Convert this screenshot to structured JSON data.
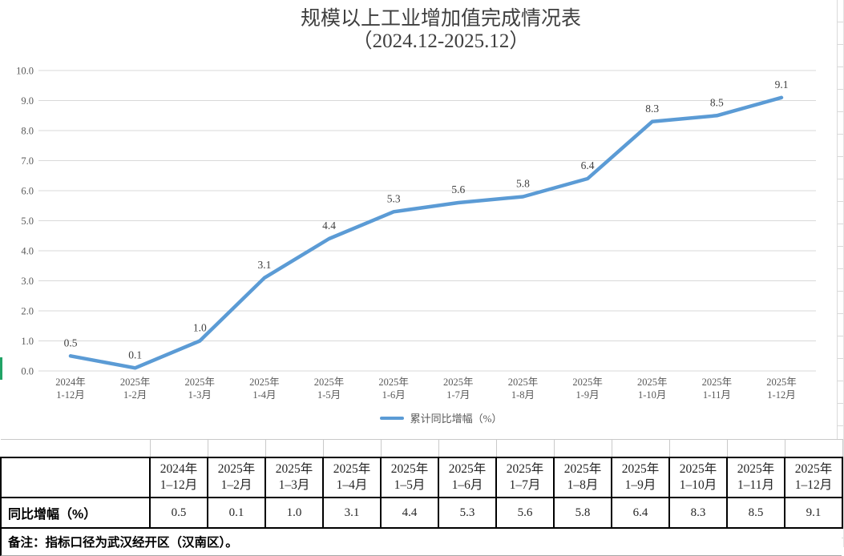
{
  "chart_data": {
    "type": "line",
    "title": "规模以上工业增加值完成情况表",
    "subtitle": "（2024.12-2025.12）",
    "categories": [
      {
        "line1": "2024年",
        "line2": "1-12月"
      },
      {
        "line1": "2025年",
        "line2": "1-2月"
      },
      {
        "line1": "2025年",
        "line2": "1-3月"
      },
      {
        "line1": "2025年",
        "line2": "1-4月"
      },
      {
        "line1": "2025年",
        "line2": "1-5月"
      },
      {
        "line1": "2025年",
        "line2": "1-6月"
      },
      {
        "line1": "2025年",
        "line2": "1-7月"
      },
      {
        "line1": "2025年",
        "line2": "1-8月"
      },
      {
        "line1": "2025年",
        "line2": "1-9月"
      },
      {
        "line1": "2025年",
        "line2": "1-10月"
      },
      {
        "line1": "2025年",
        "line2": "1-11月"
      },
      {
        "line1": "2025年",
        "line2": "1-12月"
      }
    ],
    "series": [
      {
        "name": "累计同比增幅（%）",
        "values": [
          0.5,
          0.1,
          1.0,
          3.1,
          4.4,
          5.3,
          5.6,
          5.8,
          6.4,
          8.3,
          8.5,
          9.1
        ]
      }
    ],
    "data_labels": [
      "0.5",
      "0.1",
      "1.0",
      "3.1",
      "4.4",
      "5.3",
      "5.6",
      "5.8",
      "6.4",
      "8.3",
      "8.5",
      "9.1"
    ],
    "ylim": [
      0,
      10
    ],
    "ytick_step": 1,
    "ytick_decimals": 1,
    "grid": "horizontal",
    "legend": "累计同比增幅（%）",
    "legend_position": "bottom"
  },
  "table": {
    "row_label": "同比增幅（%）",
    "columns": [
      {
        "line1": "2024年",
        "line2": "1–12月"
      },
      {
        "line1": "2025年",
        "line2": "1–2月"
      },
      {
        "line1": "2025年",
        "line2": "1–3月"
      },
      {
        "line1": "2025年",
        "line2": "1–4月"
      },
      {
        "line1": "2025年",
        "line2": "1–5月"
      },
      {
        "line1": "2025年",
        "line2": "1–6月"
      },
      {
        "line1": "2025年",
        "line2": "1–7月"
      },
      {
        "line1": "2025年",
        "line2": "1–8月"
      },
      {
        "line1": "2025年",
        "line2": "1–9月"
      },
      {
        "line1": "2025年",
        "line2": "1–10月"
      },
      {
        "line1": "2025年",
        "line2": "1–11月"
      },
      {
        "line1": "2025年",
        "line2": "1–12月"
      }
    ],
    "values": [
      "0.5",
      "0.1",
      "1.0",
      "3.1",
      "4.4",
      "5.3",
      "5.6",
      "5.8",
      "6.4",
      "8.3",
      "8.5",
      "9.1"
    ]
  },
  "footnote": "备注：指标口径为武汉经开区（汉南区）。",
  "colors": {
    "line": "#5B9BD5",
    "grid": "#D9D9D9",
    "axis_text": "#595959",
    "data_label": "#404040",
    "title_text": "#3F3F3F",
    "table_border": "#000000",
    "left_accent": "#21A366"
  }
}
